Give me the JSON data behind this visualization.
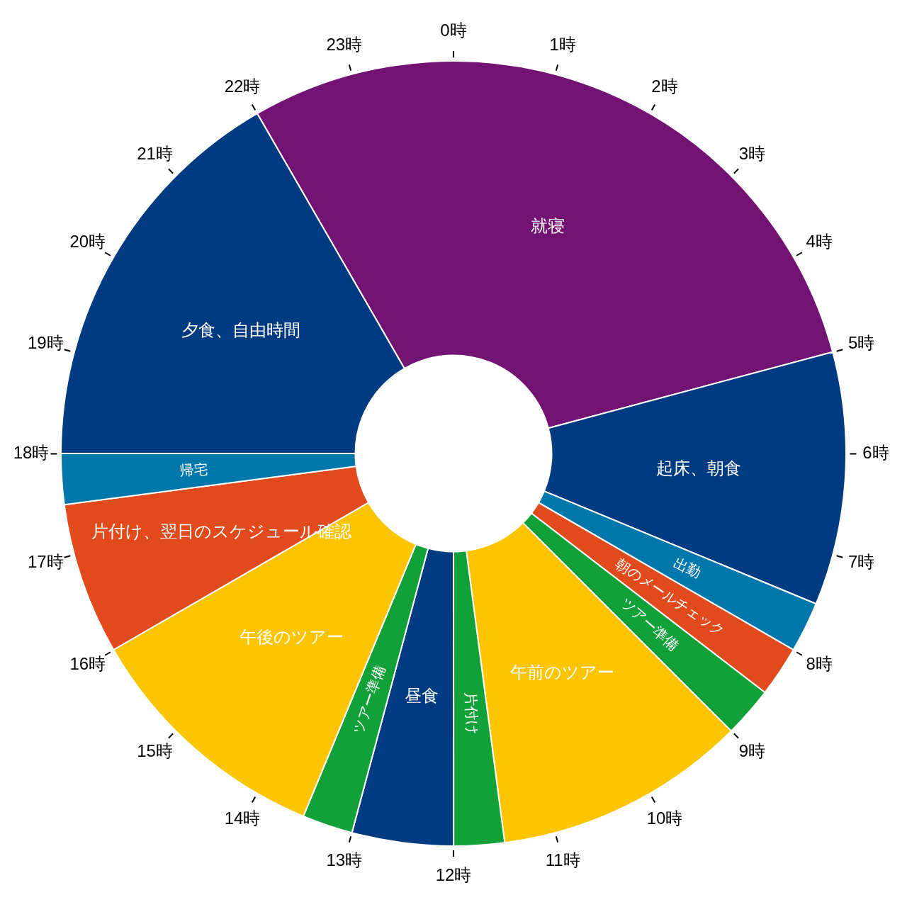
{
  "chart_data": {
    "type": "donut",
    "categories": [
      "就寝",
      "起床、朝食",
      "出勤",
      "朝のメールチェック",
      "ツアー準備",
      "午前のツアー",
      "片付け",
      "昼食",
      "ツアー準備",
      "午後のツアー",
      "片付け、翌日のスケジュール確認",
      "帰宅",
      "夕食、自由時間"
    ],
    "values": [
      29.17,
      10.42,
      2.08,
      2.08,
      2.08,
      10.42,
      2.08,
      4.17,
      2.08,
      10.42,
      6.25,
      2.08,
      16.67
    ],
    "colors": [
      "#721272",
      "#003a80",
      "#0077aa",
      "#e04a1c",
      "#12a038",
      "#fdc500",
      "#12a038",
      "#003a80",
      "#12a038",
      "#fdc500",
      "#e04a1c",
      "#0077aa",
      "#003a80"
    ],
    "annotations": [
      "0時",
      "1時",
      "2時",
      "3時",
      "4時",
      "5時",
      "6時",
      "7時",
      "8時",
      "9時",
      "10時",
      "11時",
      "12時",
      "13時",
      "14時",
      "15時",
      "16時",
      "17時",
      "18時",
      "19時",
      "20時",
      "21時",
      "22時",
      "23時"
    ]
  }
}
